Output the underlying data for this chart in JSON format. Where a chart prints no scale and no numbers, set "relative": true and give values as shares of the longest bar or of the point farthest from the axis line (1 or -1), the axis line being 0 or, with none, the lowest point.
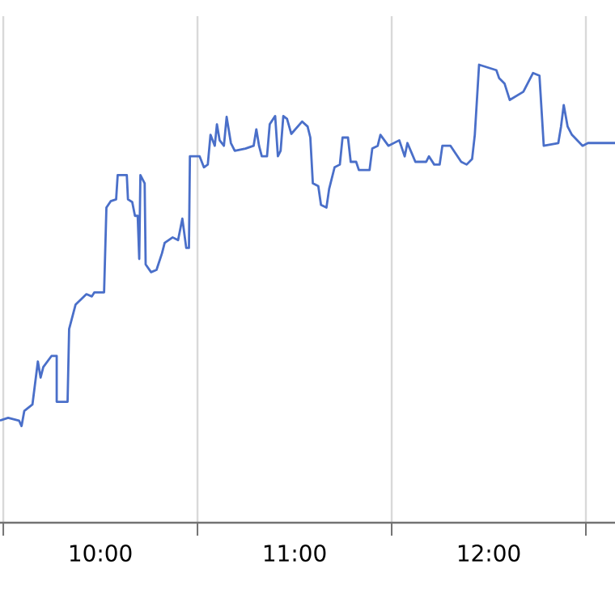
{
  "chart_data": {
    "type": "line",
    "relative": true,
    "grid": true,
    "tick_labels": "x",
    "color": "#4a6fc9",
    "xlim": [
      9.483,
      12.65
    ],
    "xticks": [
      {
        "value": 9.5,
        "label": null
      },
      {
        "value": 10,
        "label": "10:00"
      },
      {
        "value": 10.5,
        "label": null
      },
      {
        "value": 11,
        "label": "11:00"
      },
      {
        "value": 11.5,
        "label": null
      },
      {
        "value": 12,
        "label": "12:00"
      },
      {
        "value": 12.5,
        "label": null
      }
    ],
    "x": [
      9.483,
      9.525,
      9.581,
      9.594,
      9.608,
      9.65,
      9.664,
      9.678,
      9.692,
      9.706,
      9.748,
      9.775,
      9.775,
      9.831,
      9.839,
      9.872,
      9.928,
      9.956,
      9.969,
      10.019,
      10.031,
      10.053,
      10.081,
      10.089,
      10.136,
      10.142,
      10.164,
      10.178,
      10.192,
      10.2,
      10.206,
      10.228,
      10.233,
      10.261,
      10.289,
      10.317,
      10.331,
      10.372,
      10.4,
      10.422,
      10.442,
      10.456,
      10.461,
      10.511,
      10.533,
      10.553,
      10.567,
      10.589,
      10.6,
      10.614,
      10.636,
      10.65,
      10.672,
      10.692,
      10.747,
      10.789,
      10.803,
      10.817,
      10.831,
      10.858,
      10.872,
      10.9,
      10.914,
      10.928,
      10.942,
      10.961,
      10.983,
      11.039,
      11.067,
      11.081,
      11.094,
      11.122,
      11.136,
      11.164,
      11.178,
      11.206,
      11.233,
      11.247,
      11.275,
      11.289,
      11.317,
      11.331,
      11.386,
      11.4,
      11.428,
      11.442,
      11.483,
      11.539,
      11.567,
      11.581,
      11.622,
      11.678,
      11.692,
      11.719,
      11.747,
      11.761,
      11.803,
      11.858,
      11.886,
      11.914,
      11.928,
      11.95,
      12.039,
      12.053,
      12.081,
      12.108,
      12.178,
      12.228,
      12.261,
      12.283,
      12.358,
      12.372,
      12.386,
      12.406,
      12.428,
      12.483,
      12.511,
      12.65
    ],
    "values": [
      0.223,
      0.229,
      0.223,
      0.211,
      0.244,
      0.258,
      0.305,
      0.352,
      0.317,
      0.34,
      0.364,
      0.364,
      0.264,
      0.264,
      0.423,
      0.476,
      0.499,
      0.494,
      0.503,
      0.503,
      0.688,
      0.702,
      0.706,
      0.759,
      0.759,
      0.706,
      0.7,
      0.67,
      0.67,
      0.576,
      0.759,
      0.741,
      0.564,
      0.547,
      0.552,
      0.588,
      0.611,
      0.623,
      0.617,
      0.664,
      0.6,
      0.6,
      0.8,
      0.8,
      0.776,
      0.782,
      0.847,
      0.823,
      0.87,
      0.835,
      0.823,
      0.886,
      0.829,
      0.812,
      0.817,
      0.823,
      0.859,
      0.823,
      0.8,
      0.8,
      0.87,
      0.888,
      0.8,
      0.812,
      0.888,
      0.882,
      0.849,
      0.876,
      0.865,
      0.841,
      0.741,
      0.735,
      0.694,
      0.688,
      0.729,
      0.776,
      0.782,
      0.841,
      0.841,
      0.788,
      0.788,
      0.77,
      0.77,
      0.817,
      0.823,
      0.847,
      0.823,
      0.835,
      0.8,
      0.829,
      0.788,
      0.788,
      0.8,
      0.782,
      0.782,
      0.823,
      0.823,
      0.788,
      0.782,
      0.794,
      0.847,
      1.0,
      0.988,
      0.971,
      0.959,
      0.923,
      0.941,
      0.982,
      0.976,
      0.823,
      0.829,
      0.865,
      0.912,
      0.865,
      0.847,
      0.823,
      0.829,
      0.829
    ]
  }
}
